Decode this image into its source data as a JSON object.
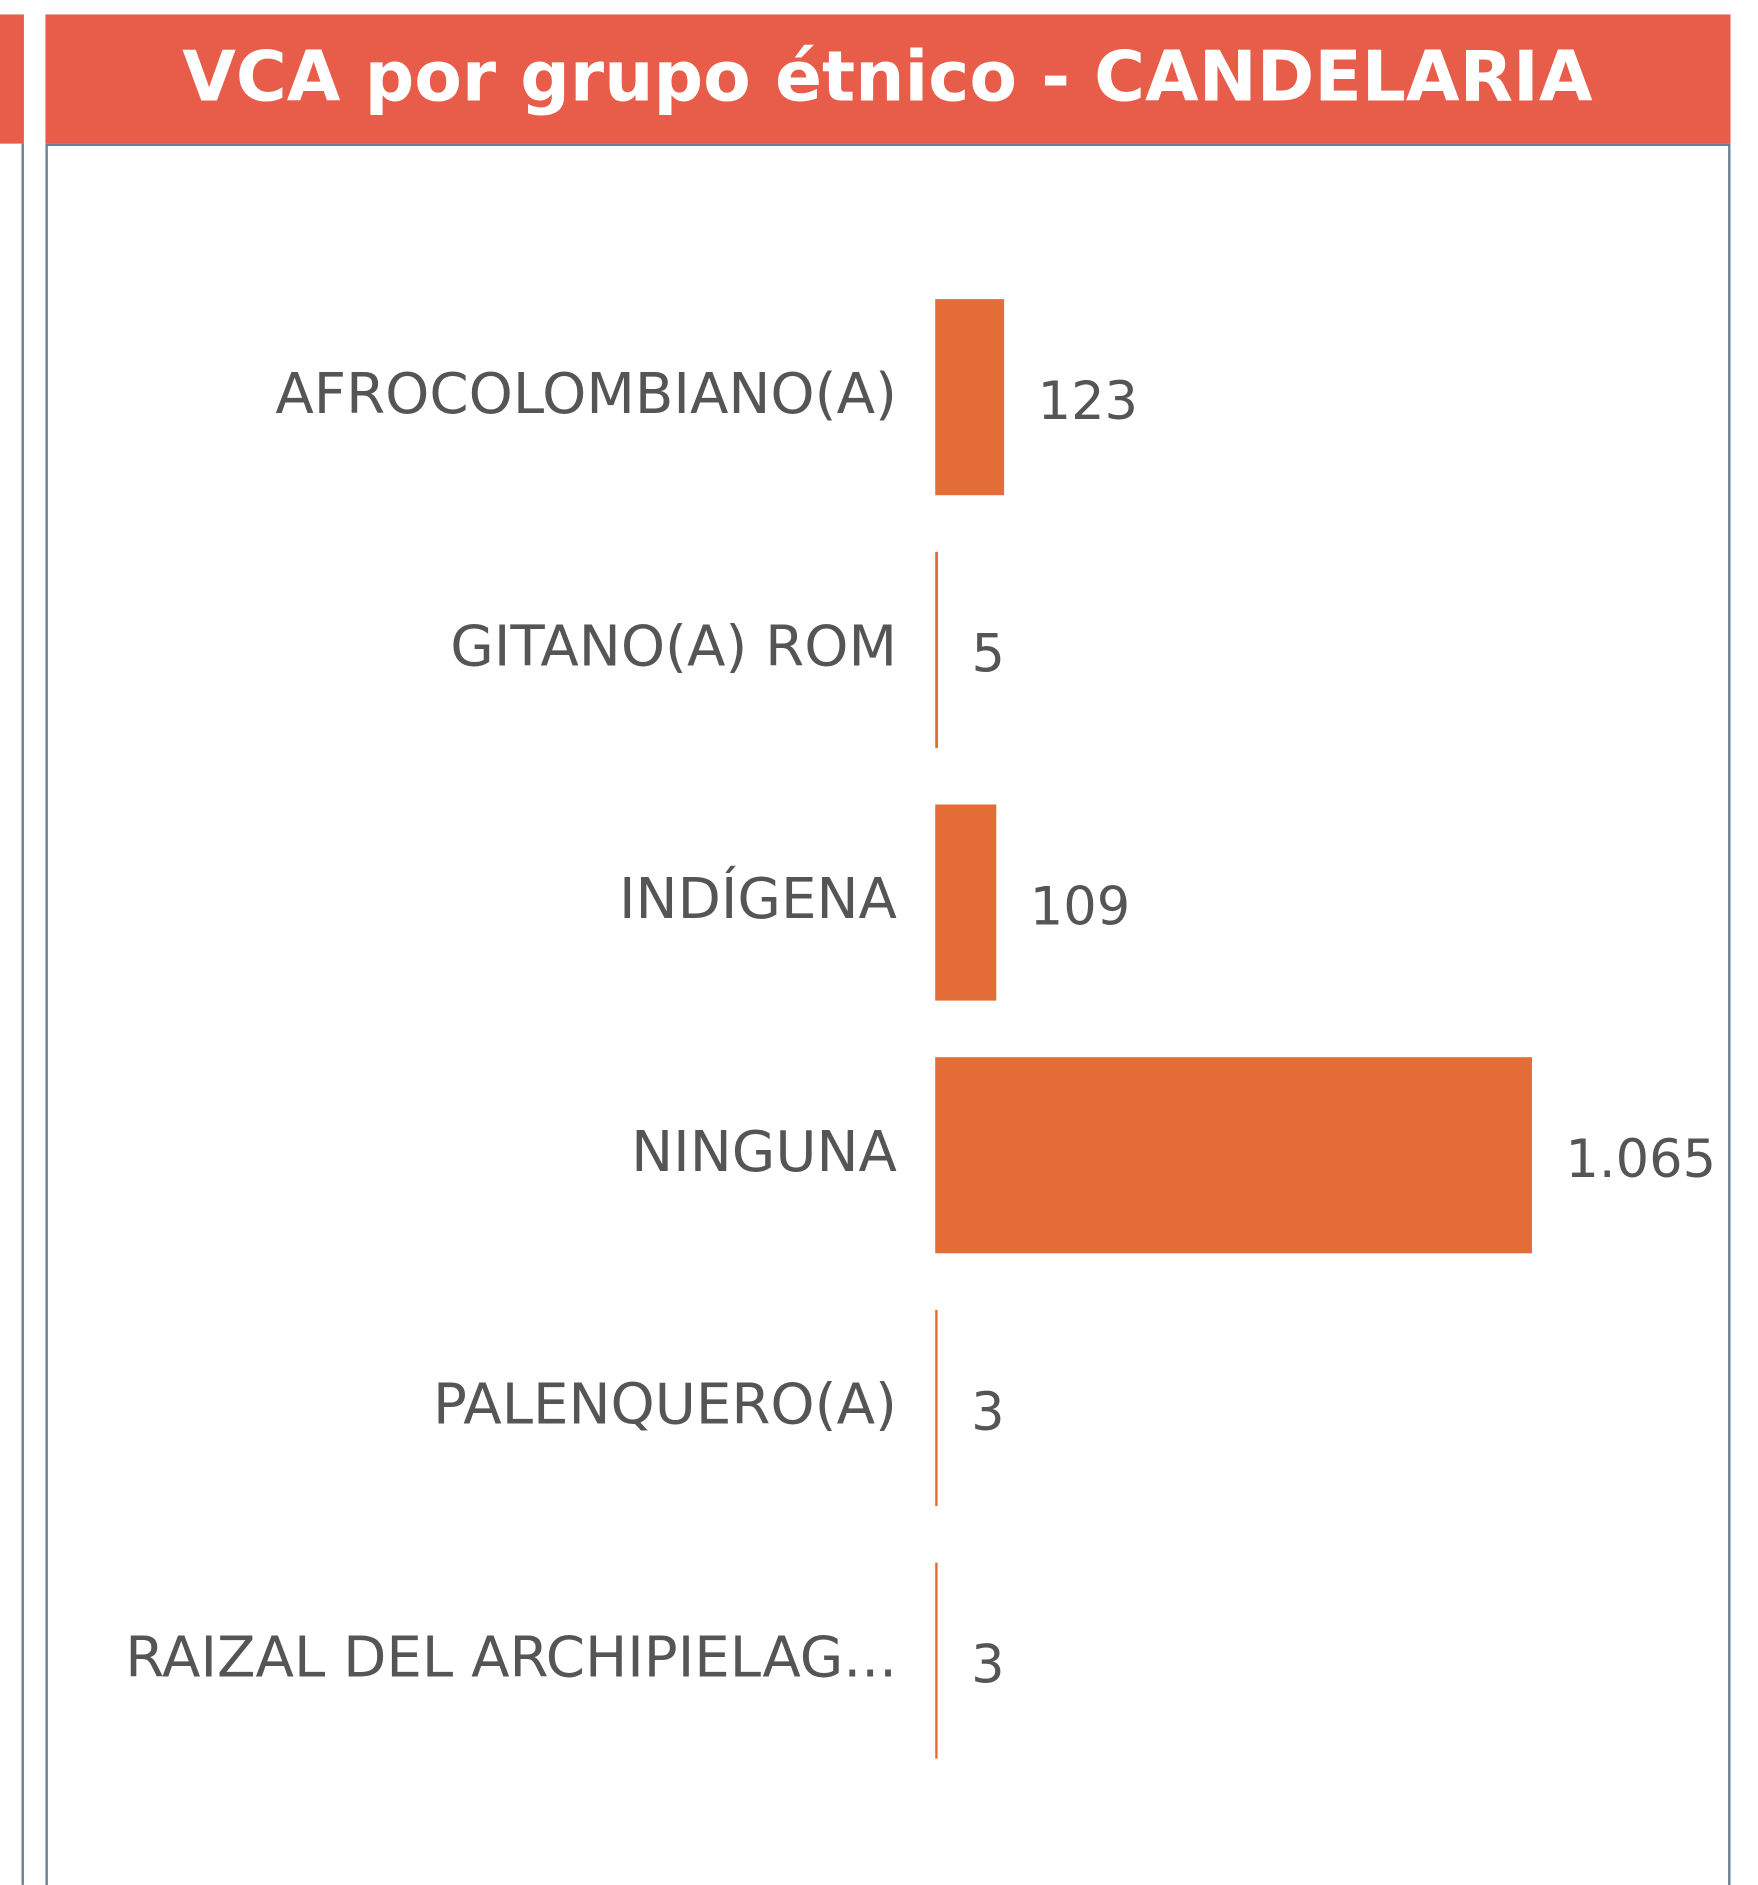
{
  "chart_data": {
    "type": "bar",
    "orientation": "horizontal",
    "title": "VCA por grupo étnico - CANDELARIA",
    "categories": [
      "AFROCOLOMBIANO(A)",
      "GITANO(A) ROM",
      "INDÍGENA",
      "NINGUNA",
      "PALENQUERO(A)",
      "RAIZAL DEL ARCHIPIELAG..."
    ],
    "values": [
      123,
      5,
      109,
      1065,
      3,
      3
    ],
    "value_labels": [
      "123",
      "5",
      "109",
      "1.065",
      "3",
      "3"
    ],
    "color": "#e46c37"
  }
}
